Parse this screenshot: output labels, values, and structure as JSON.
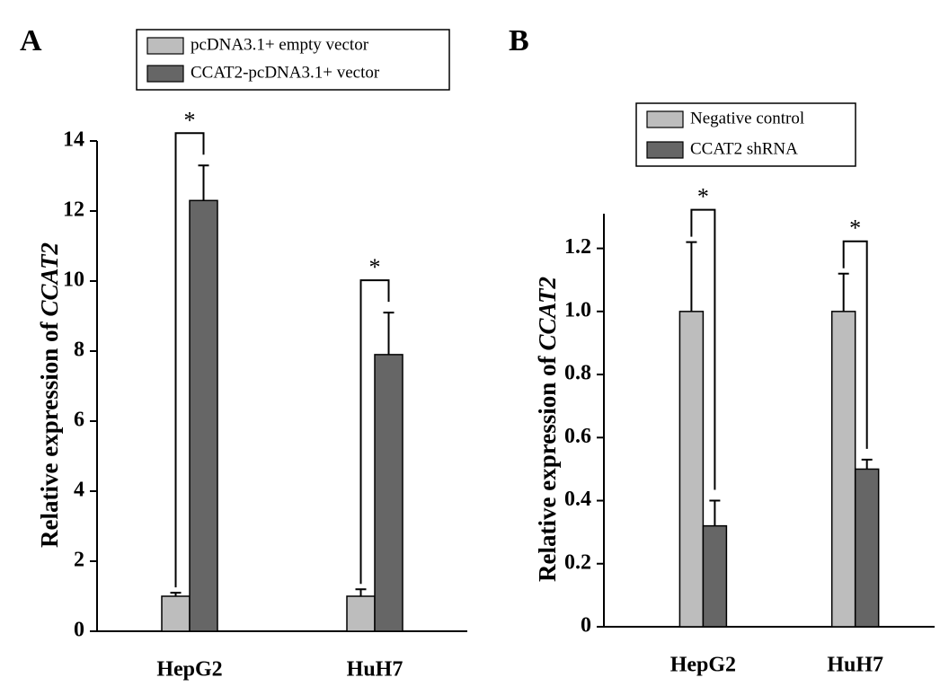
{
  "chart_data": [
    {
      "type": "bar",
      "panel_label": "A",
      "y_label": "Relative expression of",
      "y_label_gene": "CCAT2",
      "categories": [
        "HepG2",
        "HuH7"
      ],
      "series": [
        {
          "name": "pcDNA3.1+ empty vector",
          "color": "#bdbdbd",
          "values": [
            1.0,
            1.0
          ],
          "errors": [
            0.1,
            0.2
          ]
        },
        {
          "name": "CCAT2-pcDNA3.1+ vector",
          "color": "#666666",
          "values": [
            12.3,
            7.9
          ],
          "errors": [
            1.0,
            1.2
          ]
        }
      ],
      "annotations": [
        "*",
        "*"
      ],
      "ylim": [
        0,
        14
      ],
      "yticks": [
        0,
        2,
        4,
        6,
        8,
        10,
        12,
        14
      ]
    },
    {
      "type": "bar",
      "panel_label": "B",
      "y_label": "Relative expression of",
      "y_label_gene": "CCAT2",
      "categories": [
        "HepG2",
        "HuH7"
      ],
      "series": [
        {
          "name": "Negative control",
          "color": "#bdbdbd",
          "values": [
            1.0,
            1.0
          ],
          "errors": [
            0.22,
            0.12
          ]
        },
        {
          "name": "CCAT2 shRNA",
          "color": "#666666",
          "values": [
            0.32,
            0.5
          ],
          "errors": [
            0.08,
            0.03
          ]
        }
      ],
      "annotations": [
        "*",
        "*"
      ],
      "ylim": [
        0,
        1.31
      ],
      "yticks": [
        0,
        0.2,
        0.4,
        0.6,
        0.8,
        {
          "value": 1,
          "label": "1.0"
        },
        1.2
      ]
    }
  ]
}
